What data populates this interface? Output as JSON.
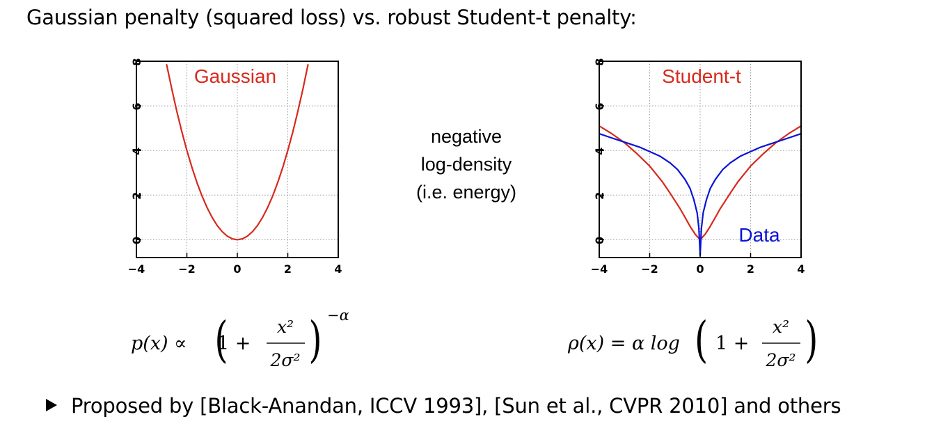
{
  "heading": "Gaussian penalty (squared loss) vs. robust Student-t penalty:",
  "middle_label": [
    "negative",
    "log-density",
    "(i.e. energy)"
  ],
  "bullet": "Proposed by [Black-Anandan, ICCV 1993], [Sun et al., CVPR 2010] and others",
  "formulas": {
    "left": {
      "lhs": "p(x) ∝",
      "one_plus": "1 +",
      "num": "x²",
      "den": "2σ²",
      "exponent": "−α"
    },
    "right": {
      "lhs": "ρ(x) = α log",
      "one_plus": "1 +",
      "num": "x²",
      "den": "2σ²"
    }
  },
  "colors": {
    "gaussian": "#d62a1e",
    "student": "#d62a1e",
    "data": "#0a14d6"
  },
  "chart_data": [
    {
      "type": "line",
      "xlim": [
        -4,
        4
      ],
      "ylim": [
        -0.8,
        8
      ],
      "xticks": [
        "−4",
        "−2",
        "0",
        "2",
        "4"
      ],
      "yticks": [
        "0",
        "2",
        "4",
        "6",
        "8"
      ],
      "grid": true,
      "series": [
        {
          "name": "Gaussian",
          "color": "#d62a1e",
          "x": [
            -2.8,
            -2.6,
            -2.4,
            -2.2,
            -2.0,
            -1.8,
            -1.6,
            -1.4,
            -1.2,
            -1.0,
            -0.8,
            -0.6,
            -0.4,
            -0.2,
            0,
            0.2,
            0.4,
            0.6,
            0.8,
            1.0,
            1.2,
            1.4,
            1.6,
            1.8,
            2.0,
            2.2,
            2.4,
            2.6,
            2.8
          ],
          "y": [
            7.84,
            6.76,
            5.76,
            4.84,
            4.0,
            3.24,
            2.56,
            1.96,
            1.44,
            1.0,
            0.64,
            0.36,
            0.16,
            0.04,
            0,
            0.04,
            0.16,
            0.36,
            0.64,
            1.0,
            1.44,
            1.96,
            2.56,
            3.24,
            4.0,
            4.84,
            5.76,
            6.76,
            7.84
          ]
        }
      ]
    },
    {
      "type": "line",
      "xlim": [
        -4,
        4
      ],
      "ylim": [
        -0.8,
        8
      ],
      "xticks": [
        "−4",
        "−2",
        "0",
        "2",
        "4"
      ],
      "yticks": [
        "0",
        "2",
        "4",
        "6",
        "8"
      ],
      "grid": true,
      "series": [
        {
          "name": "Student-t",
          "color": "#d62a1e",
          "x": [
            -4,
            -3.5,
            -3,
            -2.5,
            -2,
            -1.5,
            -1.2,
            -1,
            -0.8,
            -0.6,
            -0.4,
            -0.2,
            0,
            0.2,
            0.4,
            0.6,
            0.8,
            1,
            1.2,
            1.5,
            2,
            2.5,
            3,
            3.5,
            4
          ],
          "y": [
            5.1,
            4.75,
            4.35,
            3.85,
            3.3,
            2.6,
            2.1,
            1.75,
            1.4,
            1.0,
            0.6,
            0.25,
            0,
            0.25,
            0.6,
            1.0,
            1.4,
            1.75,
            2.1,
            2.6,
            3.3,
            3.85,
            4.35,
            4.75,
            5.1
          ]
        },
        {
          "name": "Data",
          "color": "#0a14d6",
          "x": [
            -4,
            -3.6,
            -3.2,
            -2.8,
            -2.4,
            -2,
            -1.6,
            -1.2,
            -0.9,
            -0.6,
            -0.4,
            -0.25,
            -0.12,
            -0.05,
            0,
            0.05,
            0.12,
            0.25,
            0.4,
            0.6,
            0.9,
            1.2,
            1.6,
            2,
            2.4,
            2.8,
            3.2,
            3.6,
            4
          ],
          "y": [
            4.75,
            4.6,
            4.45,
            4.3,
            4.15,
            3.95,
            3.75,
            3.45,
            3.15,
            2.7,
            2.3,
            1.8,
            1.2,
            0.5,
            -0.7,
            0.5,
            1.2,
            1.8,
            2.3,
            2.7,
            3.15,
            3.45,
            3.75,
            3.95,
            4.15,
            4.3,
            4.45,
            4.6,
            4.75
          ]
        }
      ]
    }
  ]
}
